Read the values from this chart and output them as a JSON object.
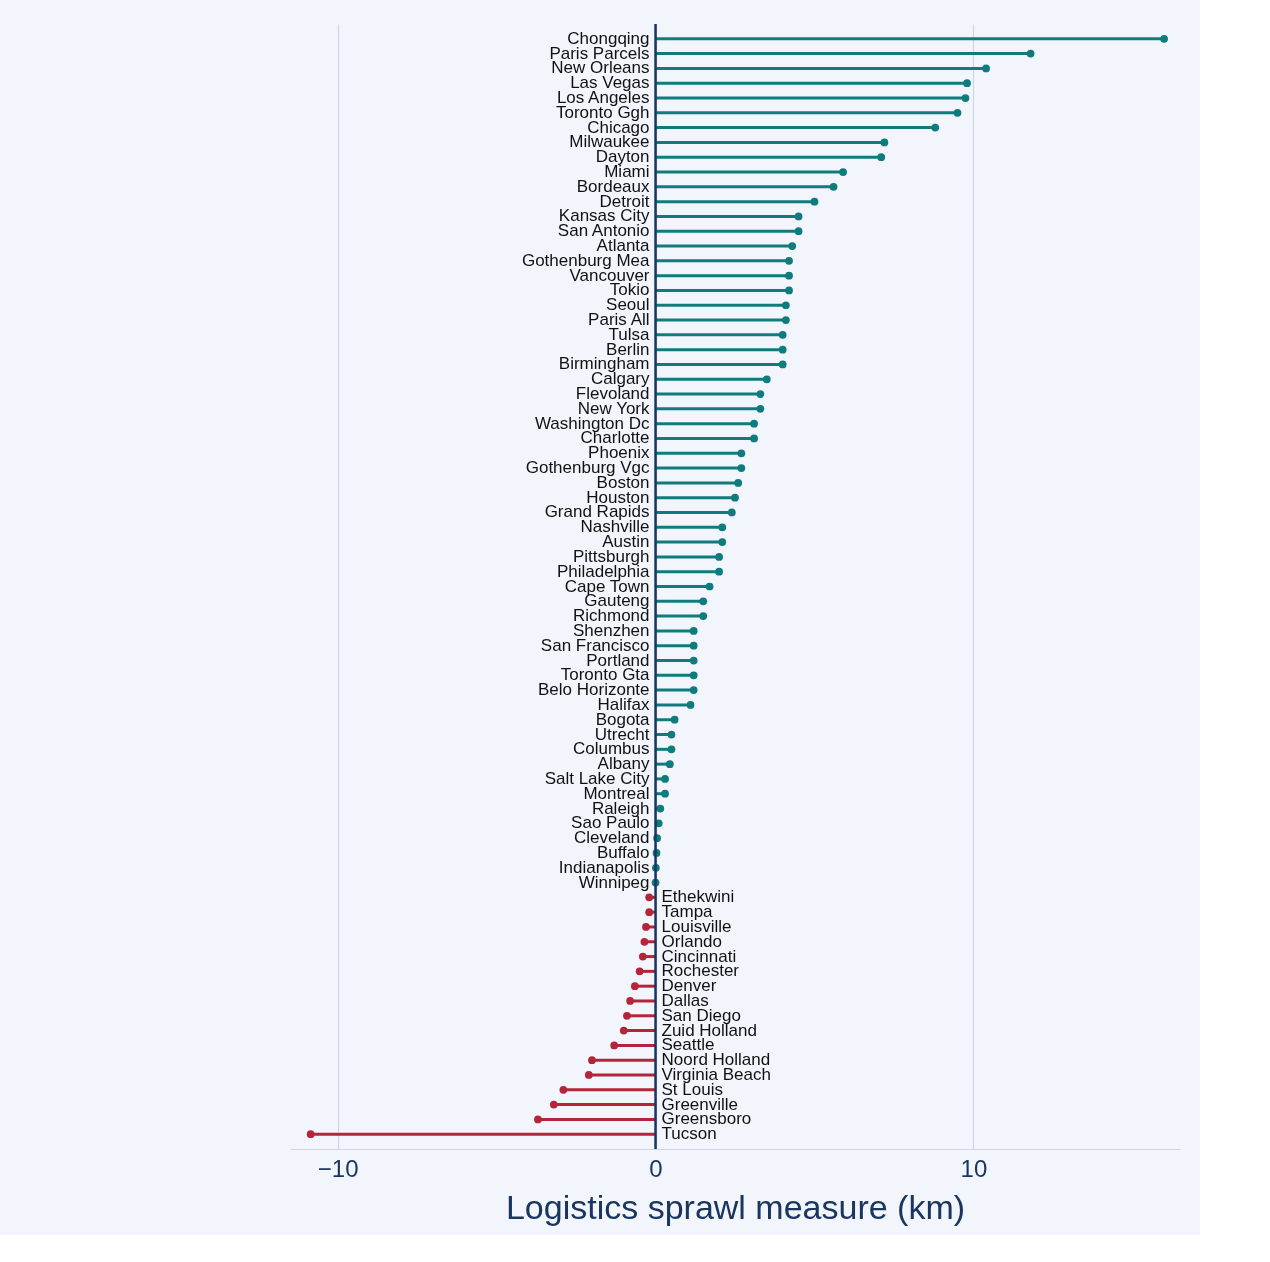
{
  "chart_data": {
    "type": "lollipop",
    "orientation": "horizontal",
    "xlabel": "Logistics sprawl measure (km)",
    "categories": [
      "Chongqing",
      "Paris Parcels",
      "New Orleans",
      "Las Vegas",
      "Los Angeles",
      "Toronto Ggh",
      "Chicago",
      "Milwaukee",
      "Dayton",
      "Miami",
      "Bordeaux",
      "Detroit",
      "Kansas City",
      "San Antonio",
      "Atlanta",
      "Gothenburg Mea",
      "Vancouver",
      "Tokio",
      "Seoul",
      "Paris All",
      "Tulsa",
      "Berlin",
      "Birmingham",
      "Calgary",
      "Flevoland",
      "New York",
      "Washington Dc",
      "Charlotte",
      "Phoenix",
      "Gothenburg Vgc",
      "Boston",
      "Houston",
      "Grand Rapids",
      "Nashville",
      "Austin",
      "Pittsburgh",
      "Philadelphia",
      "Cape Town",
      "Gauteng",
      "Richmond",
      "Shenzhen",
      "San Francisco",
      "Portland",
      "Toronto Gta",
      "Belo Horizonte",
      "Halifax",
      "Bogota",
      "Utrecht",
      "Columbus",
      "Albany",
      "Salt Lake City",
      "Montreal",
      "Raleigh",
      "Sao Paulo",
      "Cleveland",
      "Buffalo",
      "Indianapolis",
      "Winnipeg",
      "Ethekwini",
      "Tampa",
      "Louisville",
      "Orlando",
      "Cincinnati",
      "Rochester",
      "Denver",
      "Dallas",
      "San Diego",
      "Zuid Holland",
      "Seattle",
      "Noord Holland",
      "Virginia Beach",
      "St Louis",
      "Greenville",
      "Greensboro",
      "Tucson"
    ],
    "values": [
      16.0,
      11.8,
      10.4,
      9.8,
      9.75,
      9.5,
      8.8,
      7.2,
      7.1,
      5.9,
      5.6,
      5.0,
      4.5,
      4.5,
      4.3,
      4.2,
      4.2,
      4.2,
      4.1,
      4.1,
      4.0,
      4.0,
      4.0,
      3.5,
      3.3,
      3.3,
      3.1,
      3.1,
      2.7,
      2.7,
      2.6,
      2.5,
      2.4,
      2.1,
      2.1,
      2.0,
      2.0,
      1.7,
      1.5,
      1.5,
      1.2,
      1.2,
      1.2,
      1.2,
      1.2,
      1.1,
      0.6,
      0.5,
      0.5,
      0.45,
      0.3,
      0.3,
      0.15,
      0.1,
      0.05,
      0.03,
      0.01,
      0.0,
      -0.2,
      -0.2,
      -0.3,
      -0.35,
      -0.4,
      -0.5,
      -0.65,
      -0.8,
      -0.9,
      -1.0,
      -1.3,
      -2.0,
      -2.1,
      -2.9,
      -3.2,
      -3.7,
      -10.85
    ],
    "colors": [
      "#0f7b7d",
      "#0f7b7d",
      "#0f7b7d",
      "#0f7b7d",
      "#0f7b7d",
      "#0f7b7d",
      "#0f7b7d",
      "#0f7b7d",
      "#0f7b7d",
      "#0f7b7d",
      "#0f7b7d",
      "#0f7b7d",
      "#0f7b7d",
      "#0f7b7d",
      "#0f7b7d",
      "#0f7b7d",
      "#0f7b7d",
      "#0f7b7d",
      "#0f7b7d",
      "#0f7b7d",
      "#0f7b7d",
      "#0f7b7d",
      "#0f7b7d",
      "#0f7b7d",
      "#0f7b7d",
      "#0f7b7d",
      "#0f7b7d",
      "#0f7b7d",
      "#0f7b7d",
      "#0f7b7d",
      "#0f7b7d",
      "#0f7b7d",
      "#0f7b7d",
      "#0f7b7d",
      "#0f7b7d",
      "#0f7b7d",
      "#0f7b7d",
      "#0f7b7d",
      "#0f7b7d",
      "#0f7b7d",
      "#0f7b7d",
      "#0f7b7d",
      "#0f7b7d",
      "#0f7b7d",
      "#0f7b7d",
      "#0f7b7d",
      "#0f7b7d",
      "#0f7b7d",
      "#0f7b7d",
      "#0f7b7d",
      "#0f7b7d",
      "#0f7b7d",
      "#0f7b7d",
      "#0f7b7d",
      "#0f7b7d",
      "#0f7b7d",
      "#0f7b7d",
      "#0f7b7d",
      "#b5253a",
      "#b5253a",
      "#b5253a",
      "#b5253a",
      "#b5253a",
      "#b5253a",
      "#b5253a",
      "#b5253a",
      "#b5253a",
      "#b5253a",
      "#b5253a",
      "#b5253a",
      "#b5253a",
      "#b5253a",
      "#b5253a",
      "#b5253a",
      "#b5253a"
    ],
    "xlim": [
      -11.5,
      16.5
    ],
    "xticks": [
      -10,
      0,
      10
    ],
    "grid": "x",
    "marker": "circle",
    "ref_lines": [
      {
        "axis": "x",
        "value": 0,
        "color": "#1a3560"
      }
    ]
  }
}
